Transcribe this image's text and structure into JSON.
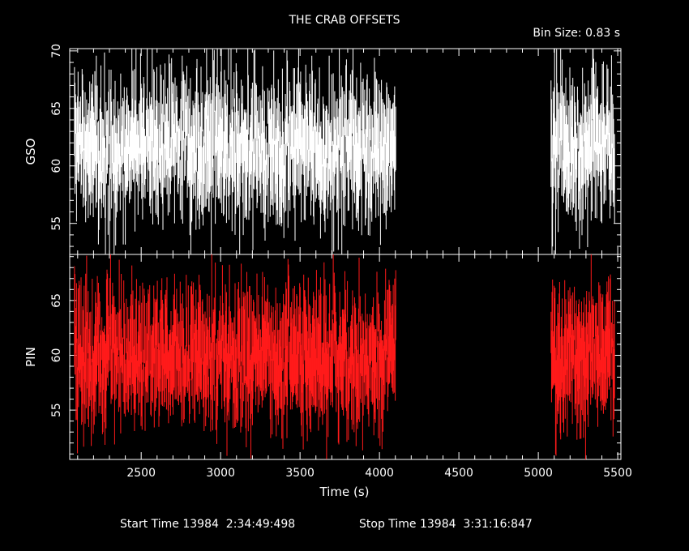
{
  "chart_data": {
    "type": "line",
    "title": "THE CRAB OFFSETS",
    "bin_size_label": "Bin Size: 0.83 s",
    "xlabel": "Time (s)",
    "xlim": [
      2050,
      5520
    ],
    "x_ticks": [
      2500,
      3000,
      3500,
      4000,
      4500,
      5000,
      5500
    ],
    "x_tick_labels": [
      "2500",
      "3000",
      "3500",
      "4000",
      "4500",
      "5000",
      "5500"
    ],
    "segments": [
      [
        2080,
        4105
      ],
      [
        5080,
        5480
      ]
    ],
    "footer": {
      "start_label": "Start Time 13984  2:34:49:498",
      "stop_label": "Stop Time 13984  3:31:16:847"
    },
    "panels": [
      {
        "name": "GSO",
        "ylabel": "GSO",
        "ylim": [
          52.3,
          70.2
        ],
        "y_ticks": [
          55,
          60,
          65,
          70
        ],
        "y_tick_labels": [
          "55",
          "60",
          "65",
          "70"
        ],
        "color": "#ffffff",
        "mean": 61.6,
        "spread": 3.6,
        "seed": 7
      },
      {
        "name": "PIN",
        "ylabel": "PIN",
        "ylim": [
          50.5,
          69.2
        ],
        "y_ticks": [
          55,
          60,
          65
        ],
        "y_tick_labels": [
          "55",
          "60",
          "65"
        ],
        "color": "#ff1a1a",
        "mean": 60.0,
        "spread": 3.5,
        "seed": 19
      }
    ]
  }
}
